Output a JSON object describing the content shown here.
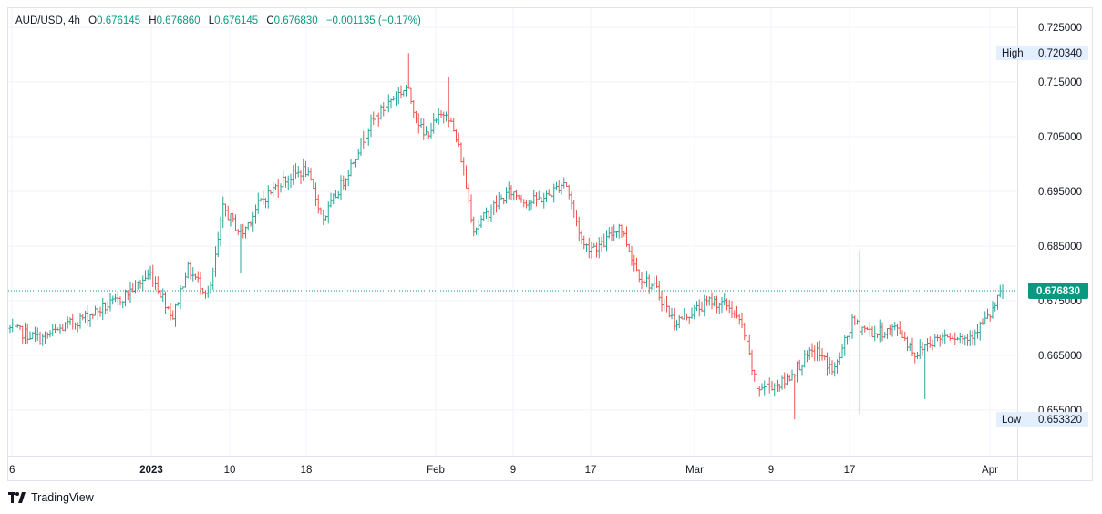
{
  "legend": {
    "symbol": "AUD/USD",
    "interval": "4h",
    "open_label": "O",
    "open": "0.676145",
    "high_label": "H",
    "high": "0.676860",
    "low_label": "L",
    "low": "0.676145",
    "close_label": "C",
    "close": "0.676830",
    "change": "−0.001135 (−0.17%)"
  },
  "colors": {
    "up": "#26a69a",
    "down": "#ef5350",
    "grid": "#f0f3fa",
    "axis_text": "#131722",
    "price_badge": "#089981",
    "marker_bg": "#e3effd"
  },
  "brand": {
    "name": "TradingView"
  },
  "chart_data": {
    "type": "ohlc",
    "symbol": "AUD/USD",
    "interval": "4h",
    "ylim": [
      0.6505,
      0.7255
    ],
    "yticks": [
      "0.725000",
      "0.715000",
      "0.705000",
      "0.695000",
      "0.685000",
      "0.675000",
      "0.665000",
      "0.655000"
    ],
    "xticks": [
      "6",
      "2023",
      "10",
      "18",
      "Feb",
      "9",
      "17",
      "Mar",
      "9",
      "17",
      "Apr"
    ],
    "high_marker": {
      "label": "High",
      "value": "0.720340"
    },
    "low_marker": {
      "label": "Low",
      "value": "0.653320"
    },
    "last_price": "0.676830",
    "bars": []
  }
}
